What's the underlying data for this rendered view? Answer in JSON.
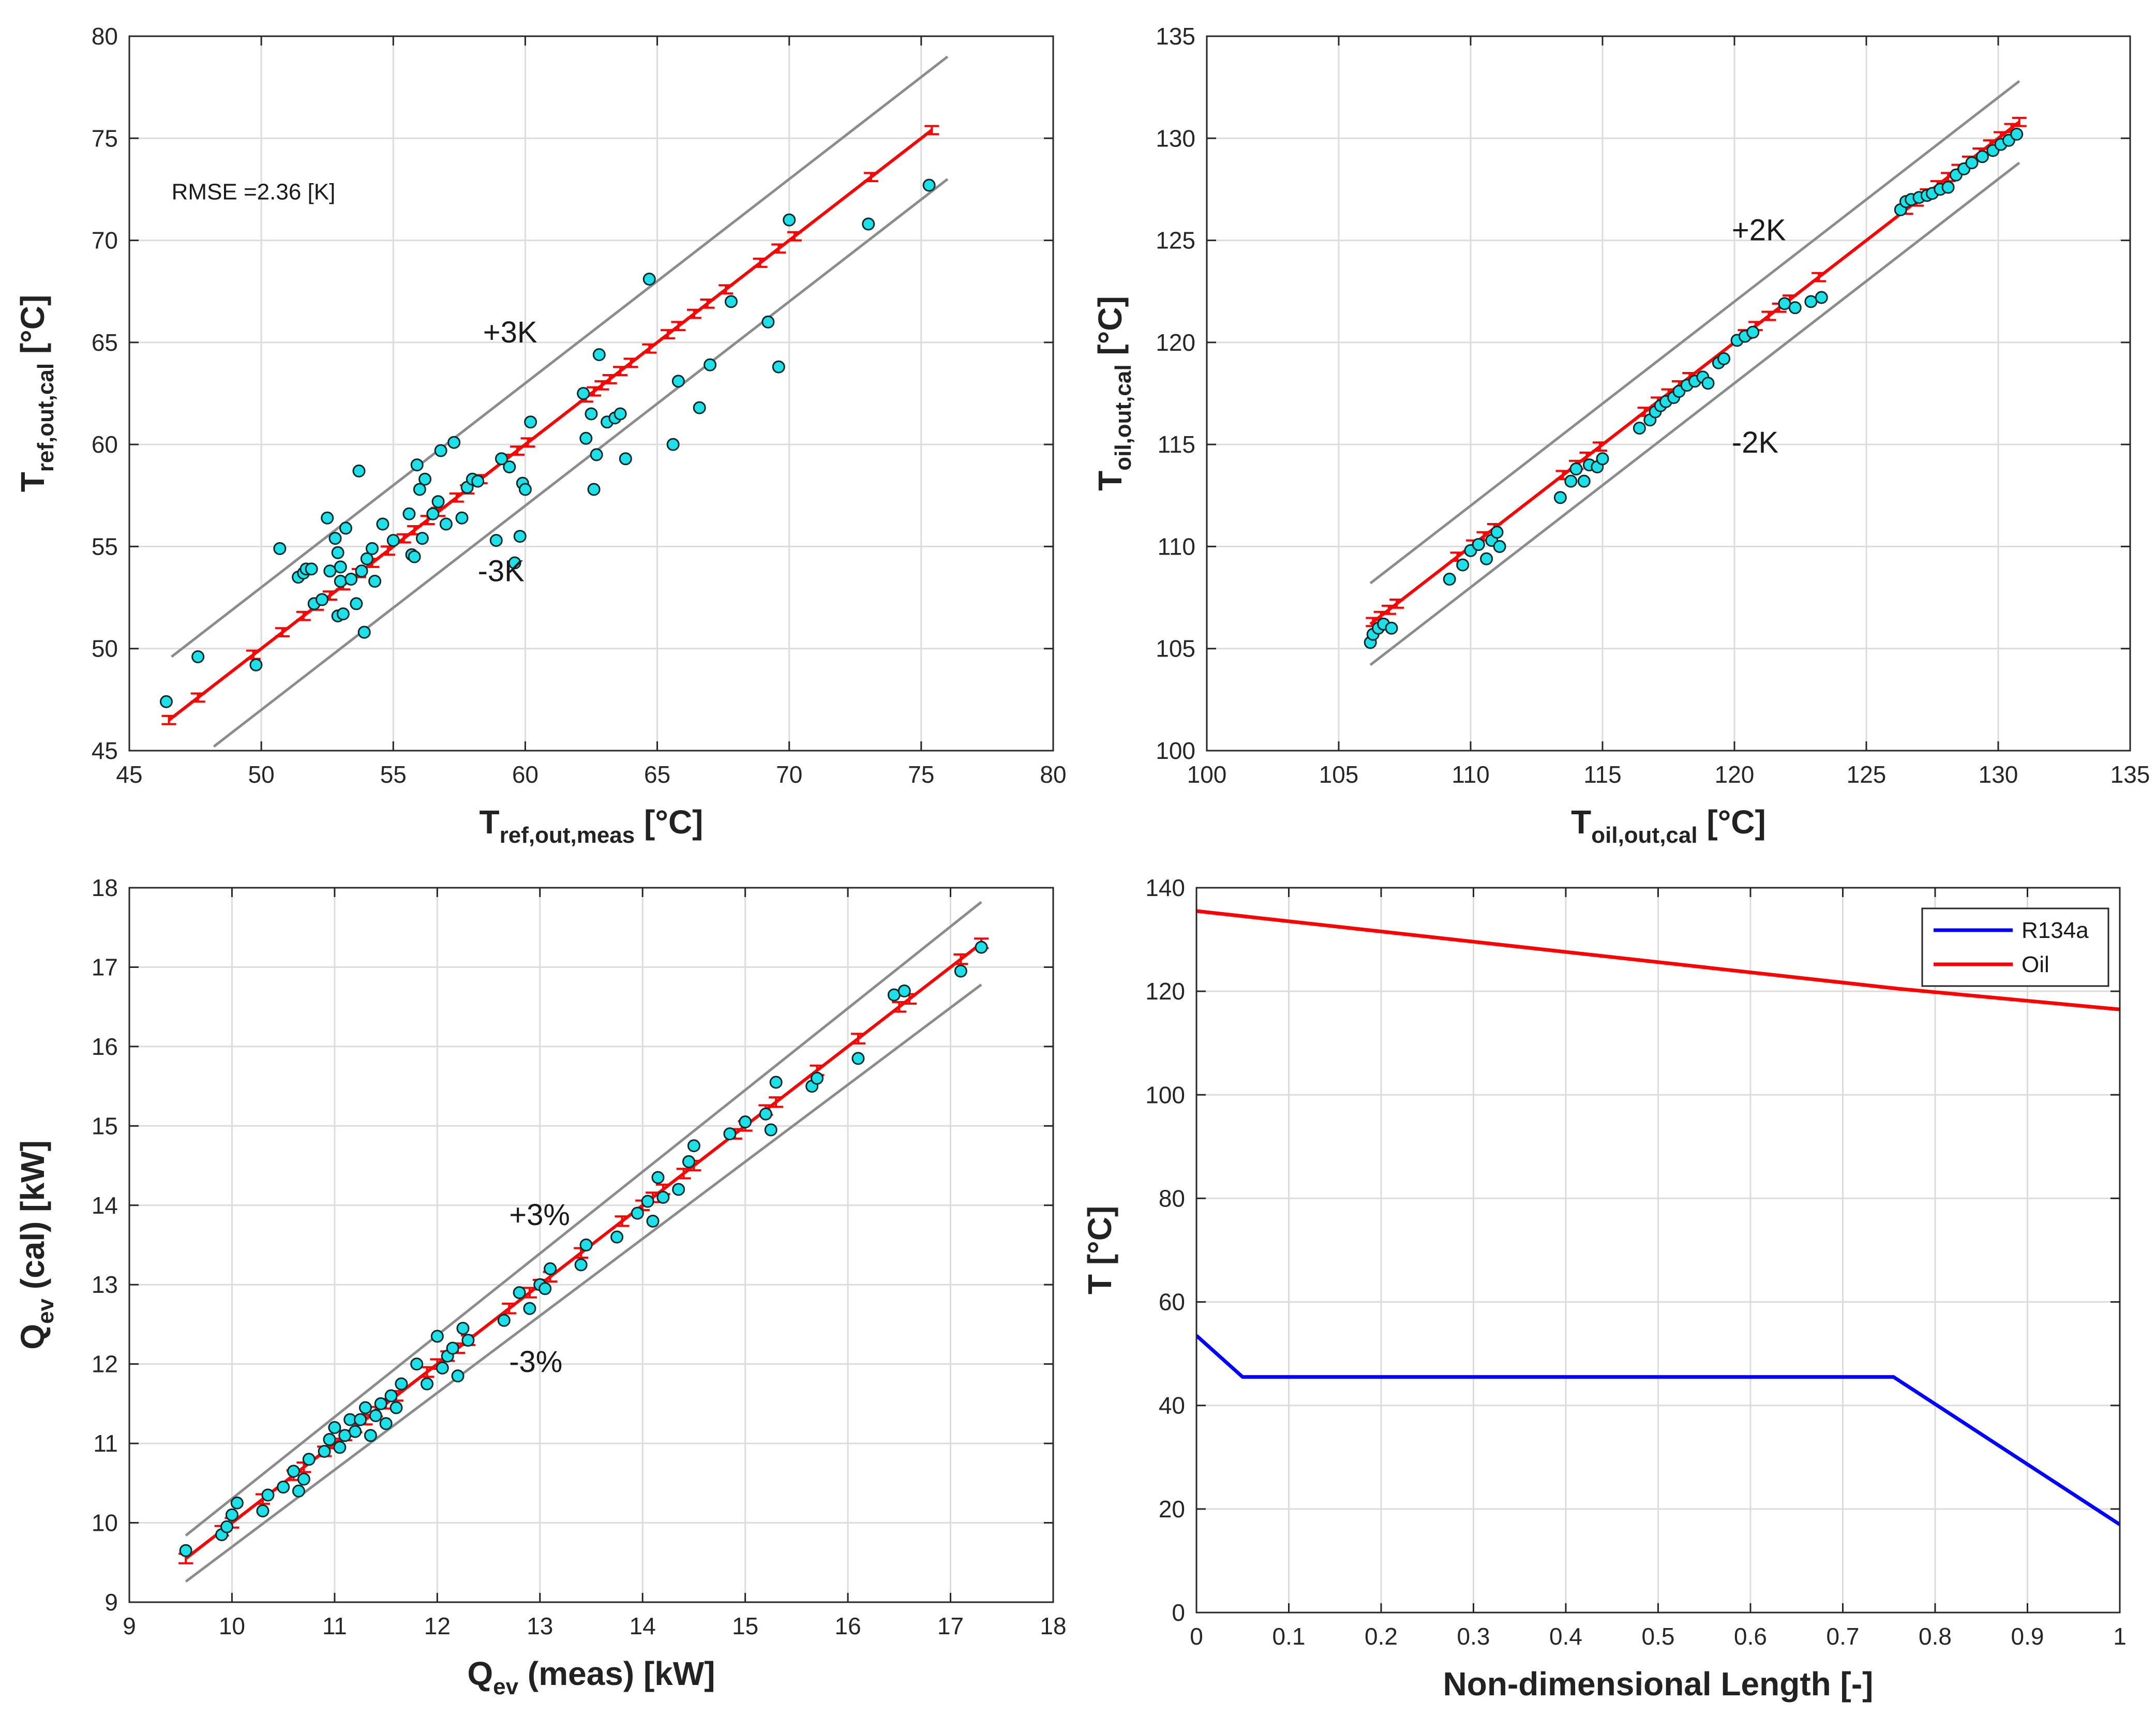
{
  "colors": {
    "fit_line": "#ff0000",
    "bound_line": "#8c8c8c",
    "marker_fill": "#1ee0e8",
    "marker_edge": "#0a2a2a",
    "r134a": "#0000ff",
    "oil": "#ff0000",
    "grid": "#dcdcdc",
    "axis": "#262626"
  },
  "chart_data": [
    {
      "id": "tref",
      "type": "scatter",
      "xlabel": {
        "base": "T",
        "sub": "ref,out,meas",
        "unit": " [°C]"
      },
      "ylabel": {
        "base": "T",
        "sub": "ref,out,cal",
        "unit": " [°C]"
      },
      "xlim": [
        45,
        80
      ],
      "ylim": [
        45,
        80
      ],
      "xticks": [
        45,
        50,
        55,
        60,
        65,
        70,
        75,
        80
      ],
      "yticks": [
        45,
        50,
        55,
        60,
        65,
        70,
        75,
        80
      ],
      "grid": true,
      "annotations": [
        {
          "text": "RMSE =2.36 [K]",
          "x": 46.6,
          "y": 72,
          "style": "rmse"
        },
        {
          "text": "+3K",
          "x": 58.4,
          "y": 65,
          "style": "annot"
        },
        {
          "text": "-3K",
          "x": 58.2,
          "y": 53.3,
          "style": "annot"
        }
      ],
      "bounds": [
        {
          "name": "+3K",
          "x": [
            46.6,
            76
          ],
          "y": [
            49.6,
            79
          ]
        },
        {
          "name": "-3K",
          "x": [
            48.2,
            76
          ],
          "y": [
            45.2,
            73
          ]
        }
      ],
      "fit": {
        "x": [
          46.5,
          75.4
        ],
        "y": [
          46.5,
          75.4
        ],
        "errbar_halfwidth": 0.2
      },
      "errbar_x": [
        46.5,
        47.6,
        49.7,
        50.8,
        51.6,
        52.1,
        52.6,
        53.1,
        53.7,
        54.2,
        54.8,
        55.4,
        55.8,
        56.3,
        56.7,
        57.4,
        57.8,
        58.3,
        59.3,
        59.7,
        60.1,
        62.3,
        62.6,
        62.9,
        63.2,
        63.6,
        64.0,
        64.7,
        65.4,
        65.8,
        66.4,
        66.9,
        67.6,
        68.9,
        69.6,
        70.2,
        73.1,
        75.4
      ],
      "points": {
        "x": [
          46.4,
          47.6,
          49.8,
          50.7,
          51.4,
          51.6,
          51.7,
          51.9,
          52.0,
          52.3,
          52.5,
          52.6,
          52.8,
          52.9,
          52.9,
          53.0,
          53.0,
          53.1,
          53.2,
          53.4,
          53.6,
          53.7,
          53.8,
          53.9,
          54.0,
          54.2,
          54.3,
          54.6,
          55.0,
          55.6,
          55.7,
          55.8,
          55.9,
          56.0,
          56.1,
          56.2,
          56.5,
          56.7,
          56.8,
          57.0,
          57.3,
          57.6,
          57.8,
          58.0,
          58.2,
          58.9,
          59.1,
          59.4,
          59.6,
          59.8,
          59.9,
          60.0,
          60.2,
          62.2,
          62.3,
          62.5,
          62.6,
          62.7,
          62.8,
          63.1,
          63.4,
          63.6,
          63.8,
          64.7,
          65.6,
          65.8,
          66.6,
          67.0,
          67.8,
          69.2,
          69.6,
          70.0,
          73.0,
          75.3
        ],
        "y": [
          47.4,
          49.6,
          49.2,
          54.9,
          53.5,
          53.7,
          53.9,
          53.9,
          52.2,
          52.4,
          56.4,
          53.8,
          55.4,
          54.7,
          51.6,
          53.3,
          54.0,
          51.7,
          55.9,
          53.4,
          52.2,
          58.7,
          53.8,
          50.8,
          54.4,
          54.9,
          53.3,
          56.1,
          55.3,
          56.6,
          54.6,
          54.5,
          59.0,
          57.8,
          55.4,
          58.3,
          56.6,
          57.2,
          59.7,
          56.1,
          60.1,
          56.4,
          57.9,
          58.3,
          58.2,
          55.3,
          59.3,
          58.9,
          54.2,
          55.5,
          58.1,
          57.8,
          61.1,
          62.5,
          60.3,
          61.5,
          57.8,
          59.5,
          64.4,
          61.1,
          61.3,
          61.5,
          59.3,
          68.1,
          60.0,
          63.1,
          61.8,
          63.9,
          67.0,
          66.0,
          63.8,
          71.0,
          70.8,
          72.7
        ]
      }
    },
    {
      "id": "toil",
      "type": "scatter",
      "xlabel": {
        "base": "T",
        "sub": "oil,out,cal",
        "unit": " [°C]"
      },
      "ylabel": {
        "base": "T",
        "sub": "oil,out,cal",
        "unit": " [°C]"
      },
      "xlim": [
        100,
        135
      ],
      "ylim": [
        100,
        135
      ],
      "xticks": [
        100,
        105,
        110,
        115,
        120,
        125,
        130,
        135
      ],
      "yticks": [
        100,
        105,
        110,
        115,
        120,
        125,
        130,
        135
      ],
      "grid": true,
      "annotations": [
        {
          "text": "+2K",
          "x": 119.9,
          "y": 125,
          "style": "annot"
        },
        {
          "text": "-2K",
          "x": 119.9,
          "y": 114.6,
          "style": "annot"
        }
      ],
      "bounds": [
        {
          "name": "+2K",
          "x": [
            106.2,
            130.8
          ],
          "y": [
            108.2,
            132.8
          ]
        },
        {
          "name": "-2K",
          "x": [
            106.2,
            130.8
          ],
          "y": [
            104.2,
            128.8
          ]
        }
      ],
      "fit": {
        "x": [
          106.2,
          130.8
        ],
        "y": [
          106.2,
          130.8
        ],
        "errbar_halfwidth": 0.2
      },
      "errbar_x": [
        106.3,
        106.6,
        106.9,
        107.2,
        109.5,
        110.1,
        110.5,
        110.9,
        113.5,
        114.0,
        114.4,
        114.9,
        116.6,
        117.1,
        117.5,
        117.9,
        118.3,
        120.4,
        120.8,
        121.3,
        121.7,
        122.1,
        123.2,
        126.5,
        126.9,
        127.3,
        127.7,
        128.1,
        128.5,
        128.9,
        129.3,
        129.7,
        130.1,
        130.5,
        130.8
      ],
      "points": {
        "x": [
          106.2,
          106.3,
          106.5,
          106.7,
          107.0,
          109.2,
          109.7,
          110.0,
          110.3,
          110.6,
          110.8,
          111.0,
          111.1,
          113.4,
          113.8,
          114.0,
          114.3,
          114.5,
          114.8,
          115.0,
          116.4,
          116.8,
          117.0,
          117.2,
          117.4,
          117.7,
          117.9,
          118.2,
          118.5,
          118.8,
          119.0,
          119.4,
          119.6,
          120.1,
          120.4,
          120.7,
          121.9,
          122.3,
          122.9,
          123.3,
          126.3,
          126.5,
          126.7,
          127.0,
          127.3,
          127.5,
          127.8,
          128.1,
          128.4,
          128.7,
          129.0,
          129.4,
          129.8,
          130.1,
          130.4,
          130.7
        ],
        "y": [
          105.3,
          105.7,
          106.0,
          106.2,
          106.0,
          108.4,
          109.1,
          109.8,
          110.1,
          109.4,
          110.3,
          110.7,
          110.0,
          112.4,
          113.2,
          113.8,
          113.2,
          114.0,
          113.9,
          114.3,
          115.8,
          116.2,
          116.6,
          116.9,
          117.1,
          117.3,
          117.6,
          117.9,
          118.1,
          118.3,
          118.0,
          119.0,
          119.2,
          120.1,
          120.3,
          120.5,
          121.9,
          121.7,
          122.0,
          122.2,
          126.5,
          126.9,
          127.0,
          127.1,
          127.2,
          127.3,
          127.5,
          127.6,
          128.2,
          128.5,
          128.8,
          129.1,
          129.4,
          129.7,
          129.9,
          130.2
        ]
      }
    },
    {
      "id": "qev",
      "type": "scatter",
      "xlabel": {
        "base": "Q",
        "sub": "ev",
        "unit": " (meas) [kW]"
      },
      "ylabel": {
        "base": "Q",
        "sub": "ev",
        "unit": " (cal) [kW]"
      },
      "xlim": [
        9,
        18
      ],
      "ylim": [
        9,
        18
      ],
      "xticks": [
        9,
        10,
        11,
        12,
        13,
        14,
        15,
        16,
        17,
        18
      ],
      "yticks": [
        9,
        10,
        11,
        12,
        13,
        14,
        15,
        16,
        17,
        18
      ],
      "grid": true,
      "annotations": [
        {
          "text": "+3%",
          "x": 12.7,
          "y": 13.75,
          "style": "annot"
        },
        {
          "text": "-3%",
          "x": 12.7,
          "y": 11.9,
          "style": "annot"
        }
      ],
      "bounds": [
        {
          "name": "+3%",
          "x": [
            9.55,
            17.3
          ],
          "y": [
            9.84,
            17.82
          ]
        },
        {
          "name": "-3%",
          "x": [
            9.55,
            17.3
          ],
          "y": [
            9.26,
            16.78
          ]
        }
      ],
      "fit": {
        "x": [
          9.55,
          17.3
        ],
        "y": [
          9.55,
          17.3
        ],
        "errbar_halfwidth": 0.06
      },
      "errbar_x": [
        9.55,
        9.9,
        10.0,
        10.3,
        10.6,
        10.7,
        10.9,
        11.0,
        11.1,
        11.2,
        11.3,
        11.4,
        11.5,
        11.6,
        11.9,
        12.0,
        12.1,
        12.2,
        12.3,
        12.7,
        12.9,
        13.0,
        13.1,
        13.4,
        13.8,
        14.0,
        14.1,
        14.2,
        14.4,
        14.5,
        14.9,
        15.0,
        15.2,
        15.3,
        15.7,
        16.1,
        16.5,
        16.6,
        17.1,
        17.3
      ],
      "points": {
        "x": [
          9.55,
          9.9,
          9.95,
          10.0,
          10.05,
          10.3,
          10.35,
          10.5,
          10.6,
          10.65,
          10.7,
          10.75,
          10.9,
          10.95,
          11.0,
          11.05,
          11.1,
          11.15,
          11.2,
          11.25,
          11.3,
          11.35,
          11.4,
          11.45,
          11.5,
          11.55,
          11.6,
          11.65,
          11.8,
          11.9,
          12.0,
          12.05,
          12.1,
          12.15,
          12.2,
          12.25,
          12.3,
          12.65,
          12.8,
          12.9,
          13.0,
          13.05,
          13.1,
          13.4,
          13.45,
          13.75,
          13.95,
          14.05,
          14.1,
          14.15,
          14.2,
          14.35,
          14.45,
          14.5,
          14.85,
          15.0,
          15.2,
          15.25,
          15.3,
          15.65,
          15.7,
          16.1,
          16.45,
          16.55,
          17.1,
          17.3
        ],
        "y": [
          9.65,
          9.85,
          9.95,
          10.1,
          10.25,
          10.15,
          10.35,
          10.45,
          10.65,
          10.4,
          10.55,
          10.8,
          10.9,
          11.05,
          11.2,
          10.95,
          11.1,
          11.3,
          11.15,
          11.3,
          11.45,
          11.1,
          11.35,
          11.5,
          11.25,
          11.6,
          11.45,
          11.75,
          12.0,
          11.75,
          12.35,
          11.95,
          12.1,
          12.2,
          11.85,
          12.45,
          12.3,
          12.55,
          12.9,
          12.7,
          13.0,
          12.95,
          13.2,
          13.25,
          13.5,
          13.6,
          13.9,
          14.05,
          13.8,
          14.35,
          14.1,
          14.2,
          14.55,
          14.75,
          14.9,
          15.05,
          15.15,
          14.95,
          15.55,
          15.5,
          15.6,
          15.85,
          16.65,
          16.7,
          16.95,
          17.25
        ]
      }
    },
    {
      "id": "profile",
      "type": "line",
      "xlabel": {
        "base": "Non-dimensional Length [-]",
        "sub": "",
        "unit": ""
      },
      "ylabel": {
        "base": "T [°C]",
        "sub": "",
        "unit": ""
      },
      "xlim": [
        0,
        1
      ],
      "ylim": [
        0,
        140
      ],
      "xticks": [
        0,
        0.1,
        0.2,
        0.3,
        0.4,
        0.5,
        0.6,
        0.7,
        0.8,
        0.9,
        1
      ],
      "yticks": [
        0,
        20,
        40,
        60,
        80,
        100,
        120,
        140
      ],
      "grid": true,
      "legend": {
        "location": "top-right",
        "entries": [
          "R134a",
          "Oil"
        ]
      },
      "series": [
        {
          "name": "R134a",
          "x": [
            0,
            0.05,
            0.755,
            1.0
          ],
          "y": [
            53.5,
            45.5,
            45.5,
            17
          ]
        },
        {
          "name": "Oil",
          "x": [
            0,
            0.76,
            1.0
          ],
          "y": [
            135.5,
            120.5,
            116.5
          ]
        }
      ]
    }
  ]
}
